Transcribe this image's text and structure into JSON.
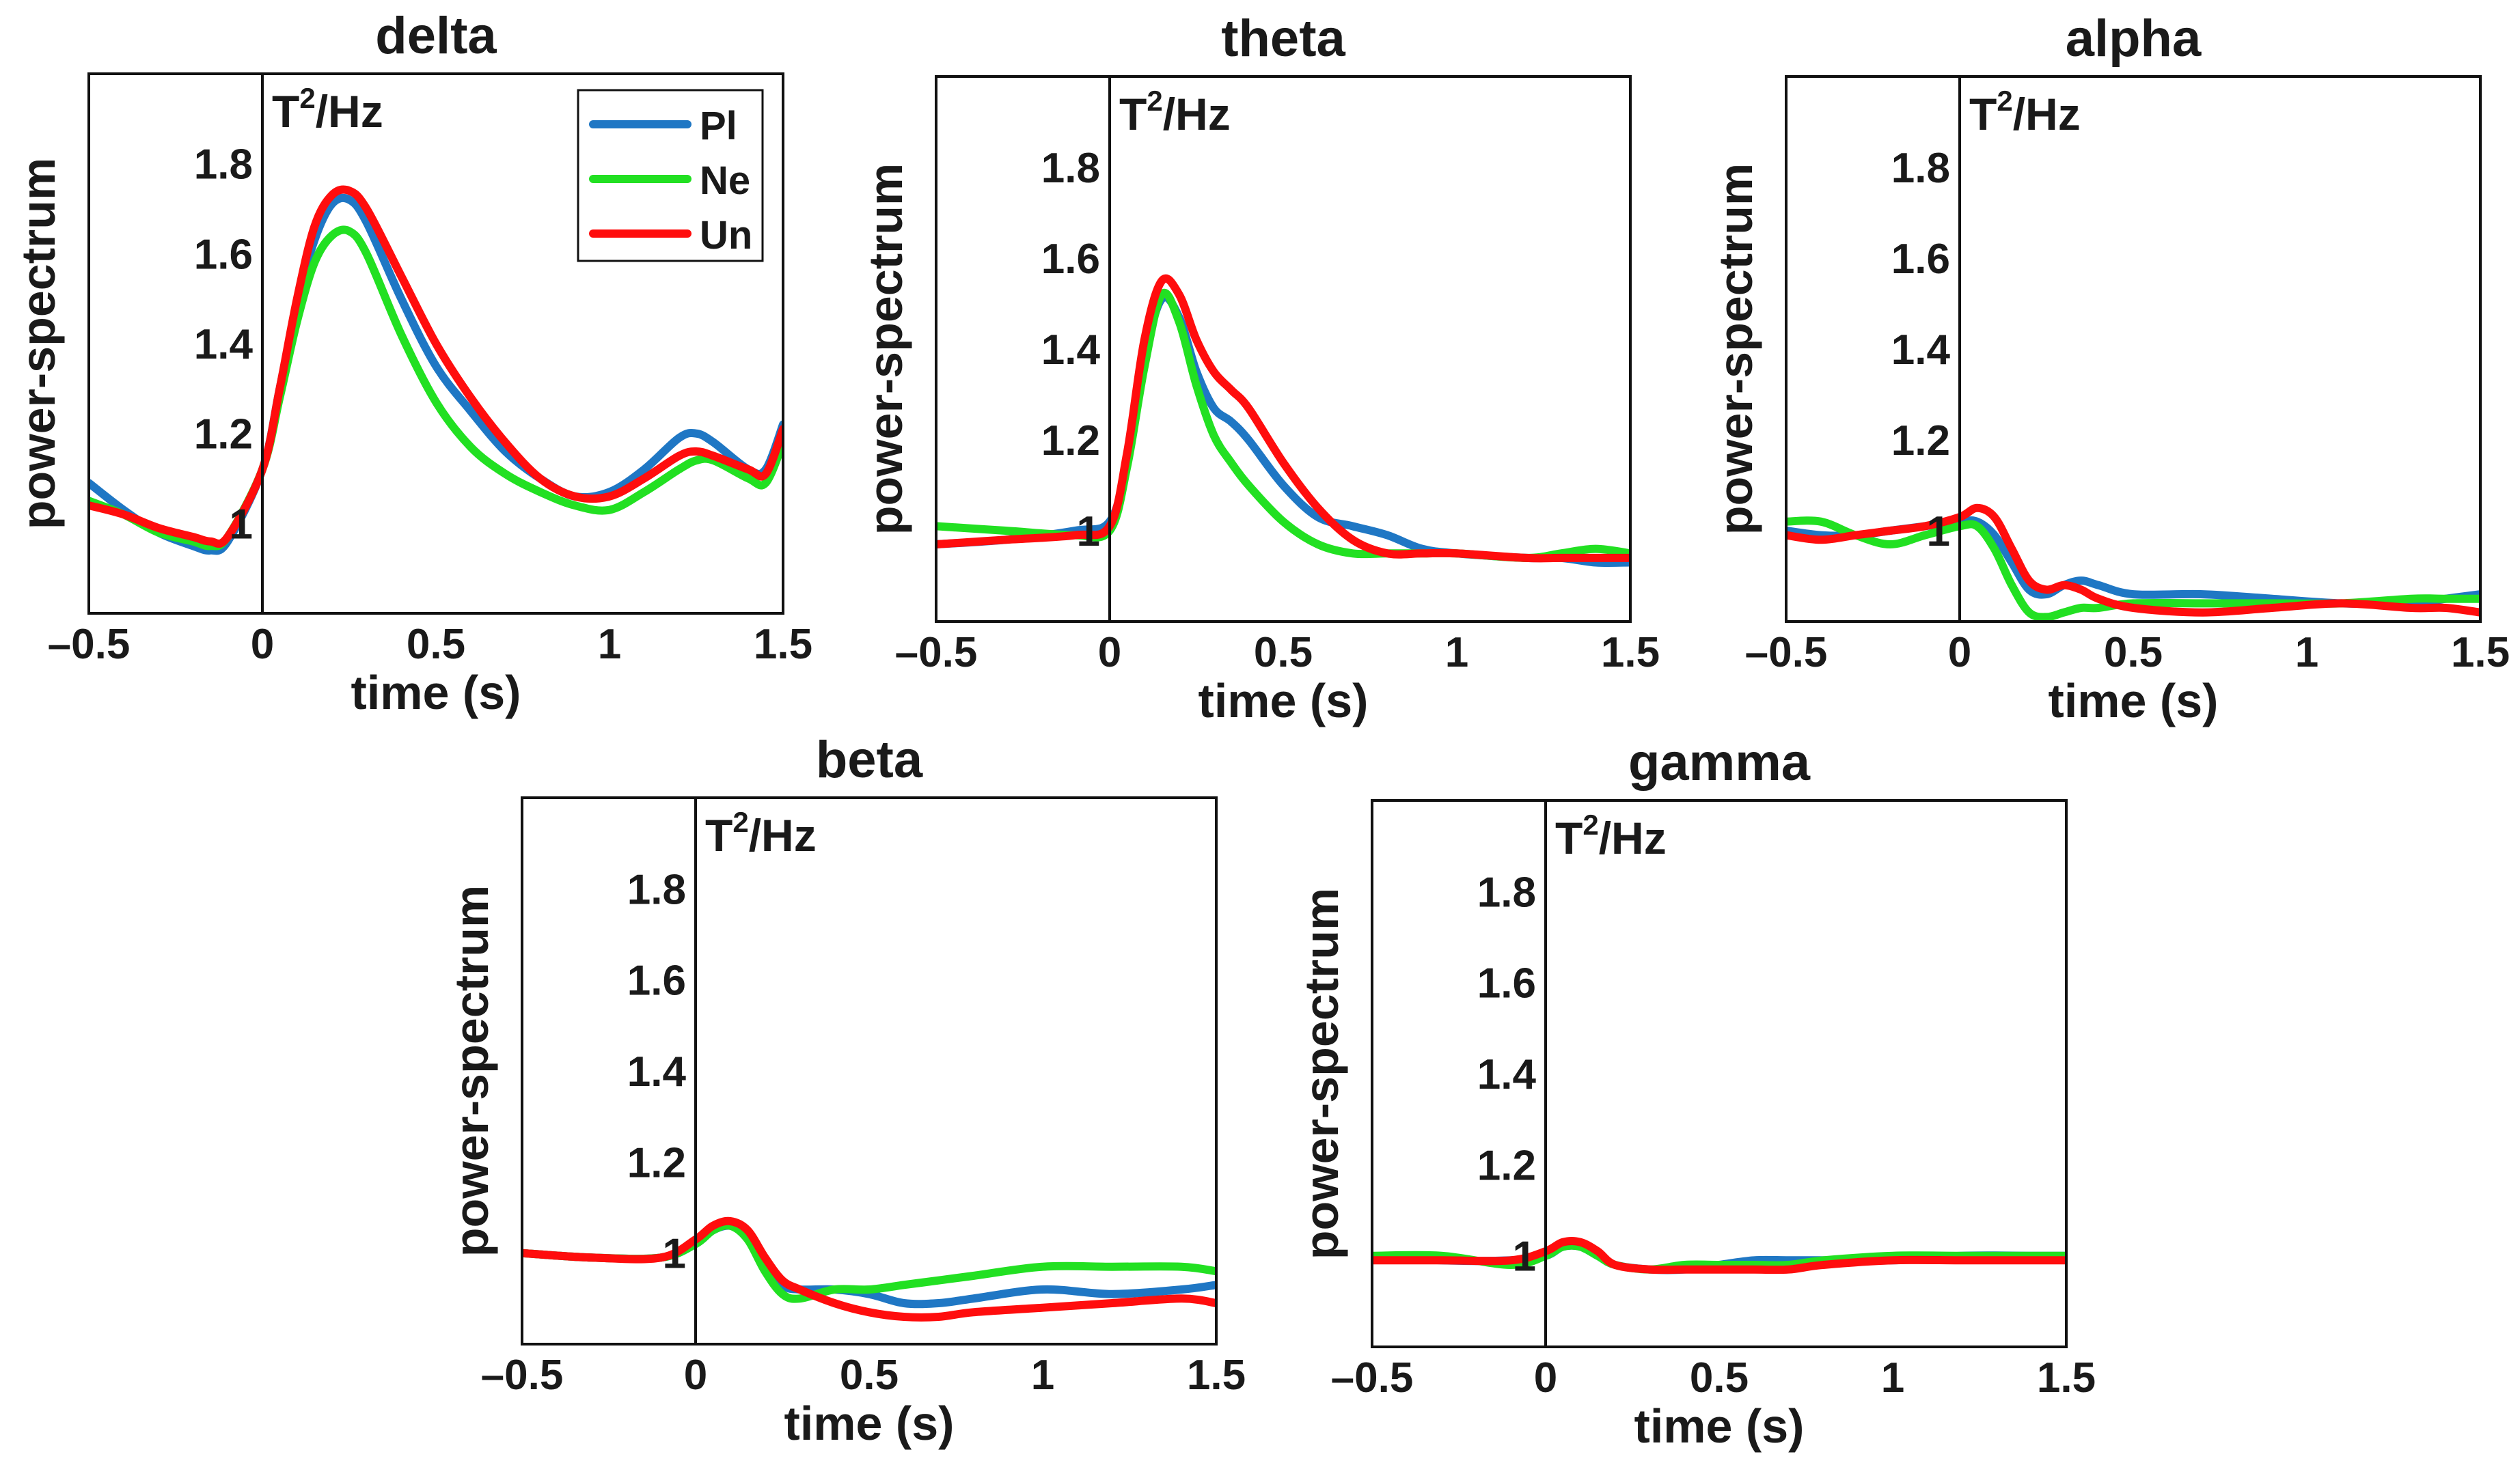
{
  "colors": {
    "Pl": "#1f77c4",
    "Ne": "#22e022",
    "Un": "#ff0d0d"
  },
  "legend": {
    "entries": [
      {
        "key": "Pl",
        "label": "Pl"
      },
      {
        "key": "Ne",
        "label": "Ne"
      },
      {
        "key": "Un",
        "label": "Un"
      }
    ]
  },
  "chart_data": [
    {
      "type": "line",
      "title": "delta",
      "xlabel": "time (s)",
      "ylabel": "power-spectrum",
      "unit": {
        "base": "T",
        "sup": "2",
        "rest": "/Hz"
      },
      "xlim": [
        -0.5,
        1.5
      ],
      "ylim": [
        0.8,
        2.0
      ],
      "xticks": [
        -0.5,
        0,
        0.5,
        1,
        1.5
      ],
      "xtick_labels": [
        "–0.5",
        "0",
        "0.5",
        "1",
        "1.5"
      ],
      "yticks": [
        1,
        1.2,
        1.4,
        1.6,
        1.8
      ],
      "ytick_labels": [
        "1",
        "1.2",
        "1.4",
        "1.6",
        "1.8"
      ],
      "has_legend": true,
      "series": [
        {
          "name": "Pl",
          "x": [
            -0.5,
            -0.4,
            -0.3,
            -0.2,
            -0.15,
            -0.1,
            0,
            0.05,
            0.1,
            0.15,
            0.2,
            0.25,
            0.3,
            0.4,
            0.5,
            0.6,
            0.7,
            0.8,
            0.9,
            1.0,
            1.1,
            1.2,
            1.25,
            1.3,
            1.4,
            1.45,
            1.5
          ],
          "y": [
            1.09,
            1.03,
            0.98,
            0.95,
            0.94,
            0.96,
            1.12,
            1.3,
            1.49,
            1.63,
            1.71,
            1.72,
            1.67,
            1.5,
            1.35,
            1.25,
            1.16,
            1.1,
            1.06,
            1.07,
            1.12,
            1.19,
            1.2,
            1.18,
            1.12,
            1.12,
            1.22
          ]
        },
        {
          "name": "Ne",
          "x": [
            -0.5,
            -0.4,
            -0.3,
            -0.2,
            -0.15,
            -0.1,
            0,
            0.05,
            0.1,
            0.15,
            0.2,
            0.25,
            0.3,
            0.4,
            0.5,
            0.6,
            0.7,
            0.8,
            0.9,
            1.0,
            1.1,
            1.2,
            1.25,
            1.3,
            1.4,
            1.45,
            1.5
          ],
          "y": [
            1.05,
            1.02,
            0.98,
            0.96,
            0.95,
            0.97,
            1.12,
            1.28,
            1.45,
            1.58,
            1.64,
            1.65,
            1.6,
            1.42,
            1.27,
            1.17,
            1.11,
            1.07,
            1.04,
            1.03,
            1.07,
            1.12,
            1.14,
            1.14,
            1.1,
            1.09,
            1.18
          ]
        },
        {
          "name": "Un",
          "x": [
            -0.5,
            -0.4,
            -0.3,
            -0.2,
            -0.15,
            -0.1,
            0,
            0.05,
            0.1,
            0.15,
            0.2,
            0.25,
            0.3,
            0.4,
            0.5,
            0.6,
            0.7,
            0.8,
            0.9,
            1.0,
            1.1,
            1.2,
            1.25,
            1.3,
            1.4,
            1.45,
            1.5
          ],
          "y": [
            1.04,
            1.02,
            0.99,
            0.97,
            0.96,
            0.97,
            1.12,
            1.3,
            1.5,
            1.66,
            1.73,
            1.74,
            1.7,
            1.55,
            1.4,
            1.28,
            1.18,
            1.1,
            1.06,
            1.06,
            1.1,
            1.15,
            1.16,
            1.15,
            1.12,
            1.11,
            1.21
          ]
        }
      ]
    },
    {
      "type": "line",
      "title": "theta",
      "xlabel": "time (s)",
      "ylabel": "power-spectrum",
      "unit": {
        "base": "T",
        "sup": "2",
        "rest": "/Hz"
      },
      "xlim": [
        -0.5,
        1.5
      ],
      "ylim": [
        0.8,
        2.0
      ],
      "xticks": [
        -0.5,
        0,
        0.5,
        1,
        1.5
      ],
      "xtick_labels": [
        "–0.5",
        "0",
        "0.5",
        "1",
        "1.5"
      ],
      "yticks": [
        1,
        1.2,
        1.4,
        1.6,
        1.8
      ],
      "ytick_labels": [
        "1",
        "1.2",
        "1.4",
        "1.6",
        "1.8"
      ],
      "has_legend": false,
      "series": [
        {
          "name": "Pl",
          "x": [
            -0.5,
            -0.3,
            -0.1,
            0,
            0.05,
            0.1,
            0.15,
            0.2,
            0.25,
            0.3,
            0.35,
            0.4,
            0.5,
            0.6,
            0.7,
            0.8,
            0.9,
            1.0,
            1.2,
            1.3,
            1.4,
            1.5
          ],
          "y": [
            0.97,
            0.98,
            1.0,
            1.02,
            1.15,
            1.38,
            1.51,
            1.47,
            1.35,
            1.27,
            1.24,
            1.2,
            1.1,
            1.03,
            1.01,
            0.99,
            0.96,
            0.95,
            0.94,
            0.94,
            0.93,
            0.93
          ]
        },
        {
          "name": "Ne",
          "x": [
            -0.5,
            -0.3,
            -0.1,
            0,
            0.05,
            0.1,
            0.15,
            0.2,
            0.25,
            0.3,
            0.35,
            0.4,
            0.5,
            0.6,
            0.7,
            0.8,
            0.9,
            1.0,
            1.2,
            1.3,
            1.4,
            1.5
          ],
          "y": [
            1.01,
            1.0,
            0.99,
            1.0,
            1.14,
            1.36,
            1.52,
            1.46,
            1.32,
            1.21,
            1.15,
            1.1,
            1.02,
            0.97,
            0.95,
            0.95,
            0.95,
            0.95,
            0.94,
            0.95,
            0.96,
            0.95
          ]
        },
        {
          "name": "Un",
          "x": [
            -0.5,
            -0.3,
            -0.1,
            0,
            0.05,
            0.1,
            0.15,
            0.2,
            0.25,
            0.3,
            0.35,
            0.4,
            0.5,
            0.6,
            0.7,
            0.8,
            0.9,
            1.0,
            1.2,
            1.3,
            1.4,
            1.5
          ],
          "y": [
            0.97,
            0.98,
            0.99,
            1.01,
            1.17,
            1.42,
            1.55,
            1.52,
            1.42,
            1.35,
            1.31,
            1.27,
            1.15,
            1.05,
            0.98,
            0.95,
            0.95,
            0.95,
            0.94,
            0.94,
            0.94,
            0.94
          ]
        }
      ]
    },
    {
      "type": "line",
      "title": "alpha",
      "xlabel": "time (s)",
      "ylabel": "power-spectrum",
      "unit": {
        "base": "T",
        "sup": "2",
        "rest": "/Hz"
      },
      "xlim": [
        -0.5,
        1.5
      ],
      "ylim": [
        0.8,
        2.0
      ],
      "xticks": [
        -0.5,
        0,
        0.5,
        1,
        1.5
      ],
      "xtick_labels": [
        "–0.5",
        "0",
        "0.5",
        "1",
        "1.5"
      ],
      "yticks": [
        1,
        1.2,
        1.4,
        1.6,
        1.8
      ],
      "ytick_labels": [
        "1",
        "1.2",
        "1.4",
        "1.6",
        "1.8"
      ],
      "has_legend": false,
      "series": [
        {
          "name": "Pl",
          "x": [
            -0.5,
            -0.4,
            -0.3,
            -0.2,
            -0.1,
            0,
            0.05,
            0.1,
            0.15,
            0.2,
            0.25,
            0.3,
            0.35,
            0.4,
            0.5,
            0.7,
            0.9,
            1.1,
            1.3,
            1.4,
            1.5
          ],
          "y": [
            1.0,
            0.99,
            0.99,
            1.0,
            1.01,
            1.02,
            1.02,
            0.99,
            0.93,
            0.87,
            0.86,
            0.88,
            0.89,
            0.88,
            0.86,
            0.86,
            0.85,
            0.84,
            0.84,
            0.85,
            0.86
          ]
        },
        {
          "name": "Ne",
          "x": [
            -0.5,
            -0.4,
            -0.3,
            -0.2,
            -0.1,
            0,
            0.05,
            0.1,
            0.15,
            0.2,
            0.25,
            0.3,
            0.35,
            0.4,
            0.5,
            0.7,
            0.9,
            1.1,
            1.3,
            1.4,
            1.5
          ],
          "y": [
            1.02,
            1.02,
            0.99,
            0.97,
            0.99,
            1.01,
            1.01,
            0.96,
            0.88,
            0.82,
            0.81,
            0.82,
            0.83,
            0.83,
            0.84,
            0.84,
            0.84,
            0.84,
            0.85,
            0.85,
            0.85
          ]
        },
        {
          "name": "Un",
          "x": [
            -0.5,
            -0.4,
            -0.3,
            -0.2,
            -0.1,
            0,
            0.05,
            0.1,
            0.15,
            0.2,
            0.25,
            0.3,
            0.35,
            0.4,
            0.5,
            0.7,
            0.9,
            1.1,
            1.3,
            1.4,
            1.5
          ],
          "y": [
            0.99,
            0.98,
            0.99,
            1.0,
            1.01,
            1.03,
            1.05,
            1.03,
            0.96,
            0.89,
            0.87,
            0.88,
            0.87,
            0.85,
            0.83,
            0.82,
            0.83,
            0.84,
            0.83,
            0.83,
            0.82
          ]
        }
      ]
    },
    {
      "type": "line",
      "title": "beta",
      "xlabel": "time (s)",
      "ylabel": "power-spectrum",
      "unit": {
        "base": "T",
        "sup": "2",
        "rest": "/Hz"
      },
      "xlim": [
        -0.5,
        1.5
      ],
      "ylim": [
        0.8,
        2.0
      ],
      "xticks": [
        -0.5,
        0,
        0.5,
        1,
        1.5
      ],
      "xtick_labels": [
        "–0.5",
        "0",
        "0.5",
        "1",
        "1.5"
      ],
      "yticks": [
        1,
        1.2,
        1.4,
        1.6,
        1.8
      ],
      "ytick_labels": [
        "1",
        "1.2",
        "1.4",
        "1.6",
        "1.8"
      ],
      "has_legend": false,
      "series": [
        {
          "name": "Pl",
          "x": [
            -0.5,
            -0.3,
            -0.1,
            0,
            0.05,
            0.1,
            0.15,
            0.2,
            0.25,
            0.3,
            0.4,
            0.5,
            0.6,
            0.7,
            0.8,
            1.0,
            1.2,
            1.4,
            1.5
          ],
          "y": [
            1.0,
            0.99,
            0.99,
            1.02,
            1.05,
            1.06,
            1.04,
            0.98,
            0.93,
            0.92,
            0.92,
            0.91,
            0.89,
            0.89,
            0.9,
            0.92,
            0.91,
            0.92,
            0.93
          ]
        },
        {
          "name": "Ne",
          "x": [
            -0.5,
            -0.3,
            -0.1,
            0,
            0.05,
            0.1,
            0.15,
            0.2,
            0.25,
            0.3,
            0.4,
            0.5,
            0.6,
            0.7,
            0.8,
            1.0,
            1.2,
            1.4,
            1.5
          ],
          "y": [
            1.0,
            0.99,
            0.99,
            1.02,
            1.05,
            1.06,
            1.03,
            0.96,
            0.91,
            0.9,
            0.92,
            0.92,
            0.93,
            0.94,
            0.95,
            0.97,
            0.97,
            0.97,
            0.96
          ]
        },
        {
          "name": "Un",
          "x": [
            -0.5,
            -0.3,
            -0.1,
            0,
            0.05,
            0.1,
            0.15,
            0.2,
            0.25,
            0.3,
            0.4,
            0.5,
            0.6,
            0.7,
            0.8,
            1.0,
            1.2,
            1.4,
            1.5
          ],
          "y": [
            1.0,
            0.99,
            0.99,
            1.03,
            1.06,
            1.07,
            1.05,
            0.99,
            0.94,
            0.92,
            0.89,
            0.87,
            0.86,
            0.86,
            0.87,
            0.88,
            0.89,
            0.9,
            0.89
          ]
        }
      ]
    },
    {
      "type": "line",
      "title": "gamma",
      "xlabel": "time (s)",
      "ylabel": "power-spectrum",
      "unit": {
        "base": "T",
        "sup": "2",
        "rest": "/Hz"
      },
      "xlim": [
        -0.5,
        1.5
      ],
      "ylim": [
        0.8,
        2.0
      ],
      "xticks": [
        -0.5,
        0,
        0.5,
        1,
        1.5
      ],
      "xtick_labels": [
        "–0.5",
        "0",
        "0.5",
        "1",
        "1.5"
      ],
      "yticks": [
        1,
        1.2,
        1.4,
        1.6,
        1.8
      ],
      "ytick_labels": [
        "1",
        "1.2",
        "1.4",
        "1.6",
        "1.8"
      ],
      "has_legend": false,
      "series": [
        {
          "name": "Pl",
          "x": [
            -0.5,
            -0.3,
            -0.1,
            0,
            0.05,
            0.1,
            0.15,
            0.2,
            0.3,
            0.4,
            0.5,
            0.6,
            0.7,
            0.8,
            1.0,
            1.2,
            1.4,
            1.5
          ],
          "y": [
            1.0,
            0.99,
            0.99,
            1.0,
            1.02,
            1.02,
            1.0,
            0.98,
            0.97,
            0.97,
            0.98,
            0.99,
            0.99,
            0.99,
            0.99,
            1.0,
            1.0,
            1.0
          ]
        },
        {
          "name": "Ne",
          "x": [
            -0.5,
            -0.3,
            -0.1,
            0,
            0.05,
            0.1,
            0.15,
            0.2,
            0.3,
            0.4,
            0.5,
            0.6,
            0.7,
            0.8,
            1.0,
            1.2,
            1.4,
            1.5
          ],
          "y": [
            1.0,
            1.0,
            0.98,
            1.0,
            1.02,
            1.02,
            1.0,
            0.98,
            0.97,
            0.98,
            0.98,
            0.98,
            0.98,
            0.99,
            1.0,
            1.0,
            1.0,
            1.0
          ]
        },
        {
          "name": "Un",
          "x": [
            -0.5,
            -0.3,
            -0.1,
            0,
            0.05,
            0.1,
            0.15,
            0.2,
            0.3,
            0.4,
            0.5,
            0.6,
            0.7,
            0.8,
            1.0,
            1.2,
            1.4,
            1.5
          ],
          "y": [
            0.99,
            0.99,
            0.99,
            1.01,
            1.03,
            1.03,
            1.01,
            0.98,
            0.97,
            0.97,
            0.97,
            0.97,
            0.97,
            0.98,
            0.99,
            0.99,
            0.99,
            0.99
          ]
        }
      ]
    }
  ]
}
